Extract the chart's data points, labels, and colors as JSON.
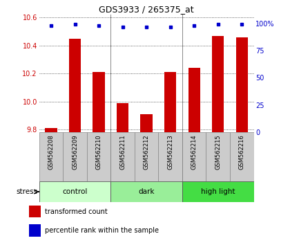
{
  "title": "GDS3933 / 265375_at",
  "samples": [
    "GSM562208",
    "GSM562209",
    "GSM562210",
    "GSM562211",
    "GSM562212",
    "GSM562213",
    "GSM562214",
    "GSM562215",
    "GSM562216"
  ],
  "transformed_counts": [
    9.81,
    10.45,
    10.21,
    9.99,
    9.91,
    10.21,
    10.24,
    10.47,
    10.46
  ],
  "percentile_ranks": [
    98,
    99,
    98,
    97,
    97,
    97,
    98,
    99,
    99
  ],
  "groups": [
    {
      "label": "control",
      "start": 0,
      "end": 3,
      "color": "#ccffcc"
    },
    {
      "label": "dark",
      "start": 3,
      "end": 6,
      "color": "#99ee99"
    },
    {
      "label": "high light",
      "start": 6,
      "end": 9,
      "color": "#44dd44"
    }
  ],
  "ylim": [
    9.78,
    10.62
  ],
  "yticks": [
    9.8,
    10.0,
    10.2,
    10.4,
    10.6
  ],
  "right_ylim": [
    0,
    108
  ],
  "right_yticks": [
    0,
    25,
    50,
    75,
    100
  ],
  "right_ytick_labels": [
    "0",
    "25",
    "50",
    "75",
    "100%"
  ],
  "bar_color": "#cc0000",
  "dot_color": "#0000cc",
  "bar_width": 0.5,
  "grid_color": "#000000",
  "bg_color": "#ffffff",
  "label_color_left": "#cc0000",
  "label_color_right": "#0000cc",
  "sample_box_color": "#cccccc",
  "stress_label": "stress",
  "legend_items": [
    {
      "label": "transformed count",
      "color": "#cc0000"
    },
    {
      "label": "percentile rank within the sample",
      "color": "#0000cc"
    }
  ]
}
